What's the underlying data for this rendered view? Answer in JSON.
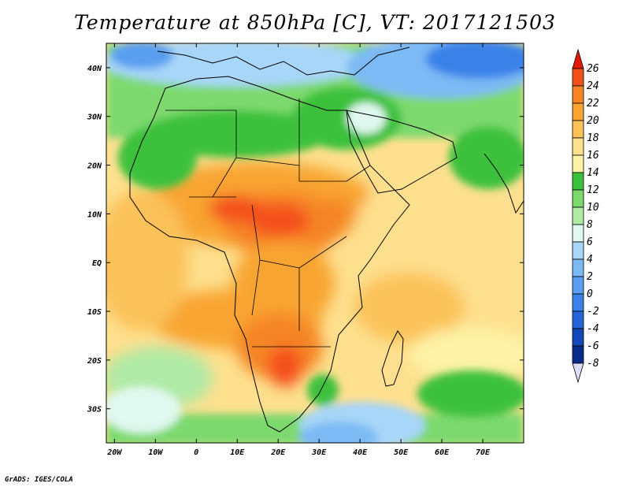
{
  "title": "Temperature at 850hPa [C], VT: 2017121503",
  "credit": "GrADS: IGES/COLA",
  "map": {
    "lon_range": [
      -22,
      80
    ],
    "lat_range": [
      -37,
      45
    ],
    "lat_ticks": [
      {
        "lat": 40,
        "label": "40N"
      },
      {
        "lat": 30,
        "label": "30N"
      },
      {
        "lat": 20,
        "label": "20N"
      },
      {
        "lat": 10,
        "label": "10N"
      },
      {
        "lat": 0,
        "label": "EQ"
      },
      {
        "lat": -10,
        "label": "10S"
      },
      {
        "lat": -20,
        "label": "20S"
      },
      {
        "lat": -30,
        "label": "30S"
      }
    ],
    "lon_ticks": [
      {
        "lon": -20,
        "label": "20W"
      },
      {
        "lon": -10,
        "label": "10W"
      },
      {
        "lon": 0,
        "label": "0"
      },
      {
        "lon": 10,
        "label": "10E"
      },
      {
        "lon": 20,
        "label": "20E"
      },
      {
        "lon": 30,
        "label": "30E"
      },
      {
        "lon": 40,
        "label": "40E"
      },
      {
        "lon": 50,
        "label": "50E"
      },
      {
        "lon": 60,
        "label": "60E"
      },
      {
        "lon": 70,
        "label": "70E"
      }
    ]
  },
  "colorbar": {
    "levels": [
      "26",
      "24",
      "22",
      "20",
      "18",
      "16",
      "14",
      "12",
      "10",
      "8",
      "6",
      "4",
      "2",
      "0",
      "-2",
      "-4",
      "-6",
      "-8"
    ],
    "colors": [
      "#e31a0a",
      "#f4501e",
      "#f58527",
      "#f8a433",
      "#fbc25a",
      "#fde08e",
      "#fdf3a6",
      "#3cc13c",
      "#7dd96e",
      "#b0eaa6",
      "#e0f8f0",
      "#a7d6f8",
      "#7dbaf4",
      "#5a9ef0",
      "#3b82e8",
      "#2565d8",
      "#1447b8",
      "#0a2a8a",
      "#04105a"
    ],
    "over_color": "#e31a0a",
    "under_color": "#ddddf5"
  }
}
